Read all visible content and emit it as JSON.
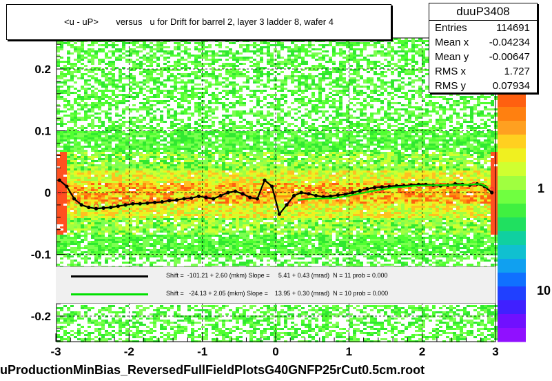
{
  "chart_data": {
    "type": "heatmap",
    "title": "<u - uP>       versus   u for Drift for barrel 2, layer 3 ladder 8, wafer 4",
    "xlim": [
      -3,
      3
    ],
    "ylim": [
      -0.25,
      0.25
    ],
    "x_ticks": [
      "-3",
      "-2",
      "-1",
      "0",
      "1",
      "2",
      "3"
    ],
    "y_ticks": [
      "-0.2",
      "-0.1",
      "0",
      "0.1",
      "0.2"
    ],
    "color_scale_labels": [
      "1",
      "10"
    ],
    "grid": true,
    "profile_black": {
      "x": [
        -2.95,
        -2.85,
        -2.75,
        -2.65,
        -2.55,
        -2.45,
        -2.35,
        -2.25,
        -2.15,
        -2.05,
        -1.95,
        -1.85,
        -1.75,
        -1.65,
        -1.55,
        -1.45,
        -1.35,
        -1.25,
        -1.15,
        -1.05,
        -0.95,
        -0.85,
        -0.75,
        -0.65,
        -0.55,
        -0.45,
        -0.35,
        -0.25,
        -0.15,
        -0.05,
        0.05,
        0.15,
        0.25,
        0.35,
        0.45,
        0.55,
        0.65,
        0.75,
        0.85,
        0.95,
        1.05,
        1.15,
        1.25,
        1.35,
        1.45,
        1.55,
        1.65,
        1.75,
        1.85,
        1.95,
        2.05,
        2.15,
        2.25,
        2.35,
        2.45,
        2.55,
        2.65,
        2.75,
        2.85,
        2.95
      ],
      "y": [
        0.02,
        0.01,
        -0.01,
        -0.02,
        -0.024,
        -0.026,
        -0.025,
        -0.024,
        -0.022,
        -0.02,
        -0.018,
        -0.018,
        -0.017,
        -0.016,
        -0.015,
        -0.013,
        -0.012,
        -0.01,
        -0.009,
        -0.006,
        -0.008,
        -0.01,
        -0.005,
        0.0,
        0.002,
        -0.002,
        -0.008,
        -0.01,
        0.02,
        0.01,
        -0.035,
        -0.02,
        -0.005,
        0.0,
        -0.002,
        -0.005,
        -0.007,
        -0.006,
        -0.004,
        -0.003,
        0.0,
        0.003,
        0.006,
        0.008,
        0.009,
        0.01,
        0.011,
        0.011,
        0.012,
        0.013,
        0.013,
        0.012,
        0.011,
        0.012,
        0.014,
        0.013,
        0.012,
        0.014,
        0.01,
        0.0
      ]
    },
    "profile_red": {
      "x": [
        -2.95,
        -2.7,
        -2.45,
        -2.2,
        -1.95,
        -1.7,
        -1.45,
        -1.2,
        -0.95,
        -0.7,
        -0.45,
        -0.2,
        0.2,
        0.45,
        0.7,
        0.95,
        1.2,
        1.45,
        1.7,
        1.95,
        2.2,
        2.45,
        2.7,
        2.95
      ],
      "y": [
        0.0,
        -0.015,
        -0.022,
        -0.02,
        -0.016,
        -0.014,
        -0.012,
        -0.01,
        -0.008,
        -0.003,
        -0.002,
        -0.004,
        -0.018,
        0.0,
        -0.004,
        -0.002,
        0.002,
        0.006,
        0.009,
        0.011,
        0.012,
        0.012,
        0.013,
        0.005
      ]
    },
    "fit_green": {
      "x": [
        0.3,
        0.5,
        0.8,
        1.0,
        1.3,
        1.6,
        1.9,
        2.2,
        2.5,
        2.8,
        2.9
      ],
      "y": [
        -0.012,
        -0.01,
        -0.009,
        -0.005,
        0.002,
        0.008,
        0.011,
        0.012,
        0.012,
        0.014,
        0.008
      ]
    }
  },
  "stats": {
    "name": "duuP3408",
    "rows": [
      {
        "key": "Entries",
        "value": "114691"
      },
      {
        "key": "Mean x",
        "value": "-0.04234"
      },
      {
        "key": "Mean y",
        "value": "-0.00647"
      },
      {
        "key": "RMS x",
        "value": "1.727"
      },
      {
        "key": "RMS y",
        "value": "0.07934"
      }
    ]
  },
  "fit_legend": {
    "black_text": "Shift =  -101.21 + 2.60 (mkm) Slope =     5.41 + 0.43 (mrad)  N = 11 prob = 0.000",
    "green_text": "Shift =   -24.13 + 2.05 (mkm) Slope =    13.95 + 0.30 (mrad)  N = 10 prob = 0.000"
  },
  "colors": {
    "black_fit": "#000000",
    "green_fit": "#00e000",
    "red_markers": "#ff3030"
  },
  "filename": "uProductionMinBias_ReversedFullFieldPlotsG40GNFP25rCut0.5cm.root"
}
